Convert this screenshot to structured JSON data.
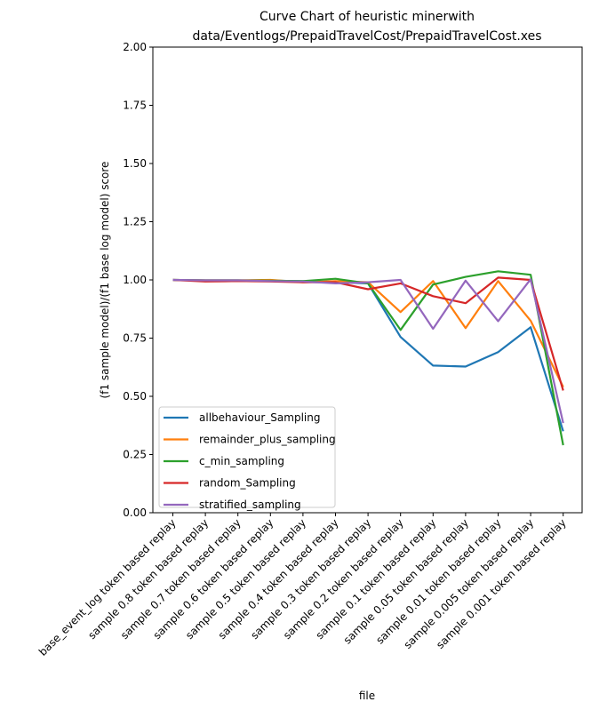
{
  "chart_data": {
    "type": "line",
    "title_line1": "Curve Chart of heuristic minerwith",
    "title_line2": "data/Eventlogs/PrepaidTravelCost/PrepaidTravelCost.xes",
    "xlabel": "file",
    "ylabel": "(f1 sample model)/(f1 base log model) score",
    "ylim": [
      0,
      2
    ],
    "yticks": [
      "0.00",
      "0.25",
      "0.50",
      "0.75",
      "1.00",
      "1.25",
      "1.50",
      "1.75",
      "2.00"
    ],
    "categories": [
      "base_event_log token based replay",
      "sample 0.8 token based replay",
      "sample 0.7 token based replay",
      "sample 0.6 token based replay",
      "sample 0.5 token based replay",
      "sample 0.4 token based replay",
      "sample 0.3 token based replay",
      "sample 0.2 token based replay",
      "sample 0.1 token based replay",
      "sample 0.05 token based replay",
      "sample 0.01 token based replay",
      "sample 0.005 token based replay",
      "sample 0.001 token based replay"
    ],
    "grid": false,
    "legend_position": "lower-left",
    "series": [
      {
        "name": "allbehaviour_Sampling",
        "color": "#1f77b4",
        "values": [
          1.0,
          0.998,
          0.998,
          0.997,
          0.995,
          0.99,
          0.985,
          0.755,
          0.632,
          0.628,
          0.69,
          0.797,
          0.35
        ]
      },
      {
        "name": "remainder_plus_sampling",
        "color": "#ff7f0e",
        "values": [
          1.0,
          0.998,
          0.998,
          1.0,
          0.99,
          0.995,
          0.99,
          0.862,
          0.995,
          0.793,
          0.995,
          0.825,
          0.54
        ]
      },
      {
        "name": "c_min_sampling",
        "color": "#2ca02c",
        "values": [
          1.0,
          0.998,
          0.998,
          0.997,
          0.995,
          1.005,
          0.985,
          0.785,
          0.98,
          1.013,
          1.037,
          1.022,
          0.29
        ]
      },
      {
        "name": "random_Sampling",
        "color": "#d62728",
        "values": [
          1.0,
          0.993,
          0.995,
          0.993,
          0.99,
          0.99,
          0.96,
          0.985,
          0.93,
          0.9,
          1.01,
          1.0,
          0.525
        ]
      },
      {
        "name": "stratified_sampling",
        "color": "#9467bd",
        "values": [
          1.0,
          0.998,
          0.998,
          0.995,
          0.993,
          0.985,
          0.99,
          1.0,
          0.79,
          0.997,
          0.823,
          1.003,
          0.385
        ]
      }
    ]
  }
}
